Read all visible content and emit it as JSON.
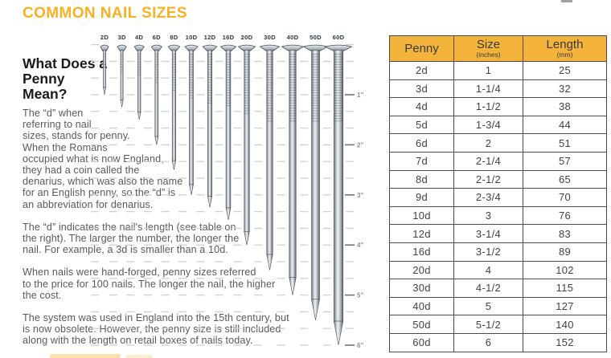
{
  "page": {
    "title": "COMMON NAIL SIZES"
  },
  "colors": {
    "accent": "#F5B128",
    "table_header_bg": "#F4B43C",
    "table_border": "#4C4C4C",
    "body_text": "#595A5C",
    "heading_text": "#1A1A1A",
    "nail_steel_light": "#EEF2F4",
    "nail_steel_dark": "#5F666D",
    "ruler_text": "#8D9094",
    "grid_dash": "#CDD1D4"
  },
  "intro": {
    "heading": "What Does a Penny Mean?",
    "paragraphs": [
      "The “d” when referring to nail sizes, stands for penny. When the Romans occupied what is now England, they had a coin called the denarius, which was also the name for an English penny, so the “d” is an abbreviation for denarius.",
      "The “d” indicates the nail's length (see table on the right). The larger the number, the longer the nail. For example, a 3d is smaller than a 10d.",
      "When nails were hand-forged, penny sizes referred to the price for 100 nails. The longer the nail, the higher the cost.",
      "The system was used in England into the 15th century, but is now obsolete. However, the penny size is still included along with the length on retail boxes of nails today."
    ]
  },
  "nail_chart": {
    "type": "pictorial-size-diagram",
    "unit": "inches",
    "nails": [
      {
        "label": "2D",
        "inches": 1
      },
      {
        "label": "3D",
        "inches": 1.25
      },
      {
        "label": "4D",
        "inches": 1.5
      },
      {
        "label": "6D",
        "inches": 2
      },
      {
        "label": "8D",
        "inches": 2.5
      },
      {
        "label": "10D",
        "inches": 3
      },
      {
        "label": "12D",
        "inches": 3.25
      },
      {
        "label": "16D",
        "inches": 3.5
      },
      {
        "label": "20D",
        "inches": 4
      },
      {
        "label": "30D",
        "inches": 4.5
      },
      {
        "label": "40D",
        "inches": 5
      },
      {
        "label": "50D",
        "inches": 5.5
      },
      {
        "label": "60D",
        "inches": 6
      }
    ],
    "ruler_labels": [
      "1\"",
      "2\"",
      "3\"",
      "4\"",
      "5\"",
      "6\""
    ]
  },
  "table": {
    "columns": [
      {
        "label": "Penny",
        "sub": ""
      },
      {
        "label": "Size",
        "sub": "(inches)"
      },
      {
        "label": "Length",
        "sub": "(mm)"
      }
    ],
    "rows": [
      [
        "2d",
        "1",
        "25"
      ],
      [
        "3d",
        "1-1/4",
        "32"
      ],
      [
        "4d",
        "1-1/2",
        "38"
      ],
      [
        "5d",
        "1-3/4",
        "44"
      ],
      [
        "6d",
        "2",
        "51"
      ],
      [
        "7d",
        "2-1/4",
        "57"
      ],
      [
        "8d",
        "2-1/2",
        "65"
      ],
      [
        "9d",
        "2-3/4",
        "70"
      ],
      [
        "10d",
        "3",
        "76"
      ],
      [
        "12d",
        "3-1/4",
        "83"
      ],
      [
        "16d",
        "3-1/2",
        "89"
      ],
      [
        "20d",
        "4",
        "102"
      ],
      [
        "30d",
        "4-1/2",
        "115"
      ],
      [
        "40d",
        "5",
        "127"
      ],
      [
        "50d",
        "5-1/2",
        "140"
      ],
      [
        "60d",
        "6",
        "152"
      ]
    ]
  }
}
